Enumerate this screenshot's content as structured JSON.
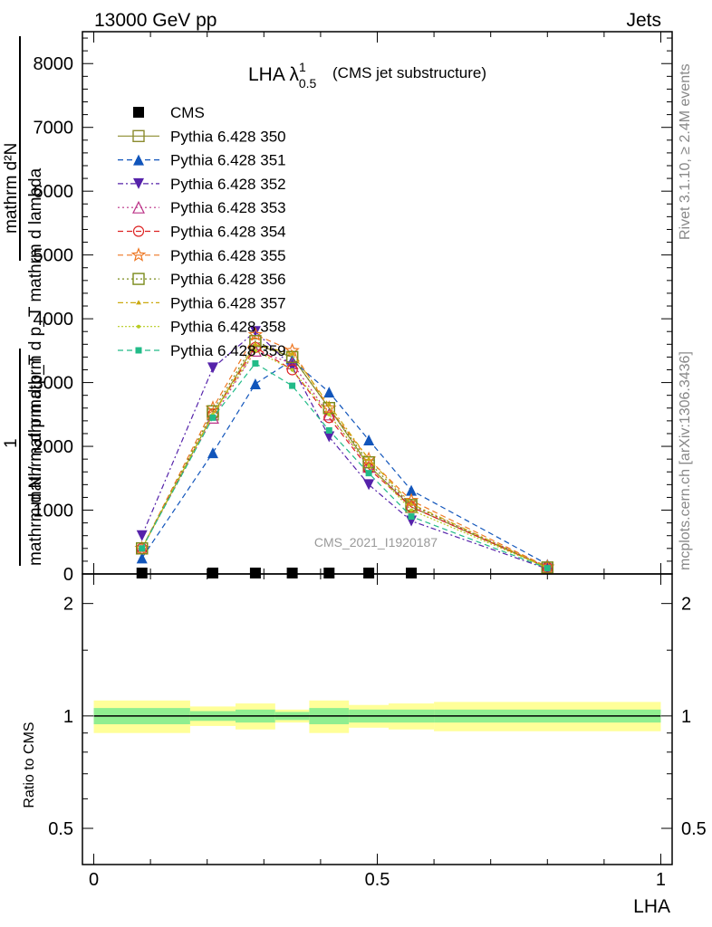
{
  "header": {
    "left": "13000 GeV pp",
    "right": "Jets"
  },
  "title": {
    "main": "LHA λ",
    "sup": "1",
    "sub": "0.5",
    "suffix": "(CMS jet substructure)"
  },
  "side_labels": {
    "rivet": "Rivet 3.1.10, ≥ 2.4M events",
    "mcplots": "mcplots.cern.ch [arXiv:1306.3436]"
  },
  "watermark": "CMS_2021_I1920187",
  "y_label": {
    "one": "1",
    "denominator": "mathrm d N / mathrm d p_T",
    "numerator_1": "mathrm d",
    "numerator_N": "N",
    "numerator_rest": "mathrm d p_T mathrm d lambda",
    "combined_top": "mathrm d²N",
    "combined_bottom": "mathrm d p mathrm d p_T mathrm d lambda"
  },
  "ratio_ylabel": "Ratio to CMS",
  "xlabel": "LHA",
  "chart_data": {
    "type": "line",
    "x_edges": [
      0.0,
      0.17,
      0.25,
      0.32,
      0.38,
      0.45,
      0.52,
      0.6,
      1.0
    ],
    "x": [
      0.085,
      0.21,
      0.285,
      0.35,
      0.415,
      0.485,
      0.56,
      0.8
    ],
    "xlim": [
      -0.02,
      1.02
    ],
    "xticks": [
      "0",
      "0.5",
      "1"
    ],
    "ylim": [
      0,
      8500
    ],
    "yticks": [
      "0",
      "1000",
      "2000",
      "3000",
      "4000",
      "5000",
      "6000",
      "7000",
      "8000"
    ],
    "series": [
      {
        "name": "CMS",
        "color": "#000000",
        "marker": "square-filled",
        "dash": "none",
        "values": [
          5,
          5,
          5,
          5,
          5,
          5,
          5,
          null
        ]
      },
      {
        "name": "Pythia 6.428 350",
        "color": "#8b8b2e",
        "marker": "square-open",
        "dash": "solid",
        "values": [
          400,
          2500,
          3600,
          3400,
          2600,
          1700,
          1050,
          100
        ]
      },
      {
        "name": "Pythia 6.428 351",
        "color": "#1155bb",
        "marker": "triangle-up-filled",
        "dash": "6,4",
        "values": [
          250,
          1900,
          2980,
          3350,
          2850,
          2100,
          1310,
          150
        ]
      },
      {
        "name": "Pythia 6.428 352",
        "color": "#5522aa",
        "marker": "triangle-down-filled",
        "dash": "6,3,2,3",
        "values": [
          600,
          3230,
          3800,
          3250,
          2150,
          1400,
          830,
          80
        ]
      },
      {
        "name": "Pythia 6.428 353",
        "color": "#bb3388",
        "marker": "triangle-up-open",
        "dash": "2,3",
        "values": [
          400,
          2450,
          3500,
          3300,
          2500,
          1680,
          1080,
          110
        ]
      },
      {
        "name": "Pythia 6.428 354",
        "color": "#dd2222",
        "marker": "circle-open",
        "dash": "6,4",
        "values": [
          400,
          2500,
          3550,
          3200,
          2450,
          1650,
          1050,
          100
        ]
      },
      {
        "name": "Pythia 6.428 355",
        "color": "#ee7722",
        "marker": "star-open",
        "dash": "6,4",
        "values": [
          400,
          2600,
          3750,
          3500,
          2600,
          1800,
          1150,
          110
        ]
      },
      {
        "name": "Pythia 6.428 356",
        "color": "#7a8a1a",
        "marker": "square-open",
        "dash": "2,3",
        "values": [
          400,
          2550,
          3650,
          3400,
          2600,
          1750,
          1080,
          100
        ]
      },
      {
        "name": "Pythia 6.428 357",
        "color": "#ccaa11",
        "marker": "tri-small",
        "dash": "6,3,2,3",
        "values": [
          400,
          2500,
          3600,
          3450,
          2650,
          1800,
          1100,
          100
        ]
      },
      {
        "name": "Pythia 6.428 358",
        "color": "#b8cc22",
        "marker": "dot-small",
        "dash": "2,2",
        "values": [
          400,
          2500,
          3500,
          3200,
          2500,
          1700,
          1000,
          95
        ]
      },
      {
        "name": "Pythia 6.428 359",
        "color": "#22bb88",
        "marker": "square-filled-small",
        "dash": "6,4",
        "values": [
          400,
          2450,
          3300,
          2950,
          2250,
          1580,
          900,
          90
        ]
      }
    ],
    "ratio": {
      "ylim": [
        0.4,
        2.4
      ],
      "log": true,
      "yticks": [
        "0.5",
        "1",
        "2"
      ],
      "band_inner_halfwidth": [
        0.05,
        0.03,
        0.04,
        0.025,
        0.05,
        0.04,
        0.04,
        0.04
      ],
      "band_outer_halfwidth": [
        0.1,
        0.06,
        0.08,
        0.04,
        0.1,
        0.07,
        0.08,
        0.09
      ],
      "colors": {
        "inner": "#90ee90",
        "outer": "#ffff99",
        "line": "#000000"
      }
    }
  }
}
